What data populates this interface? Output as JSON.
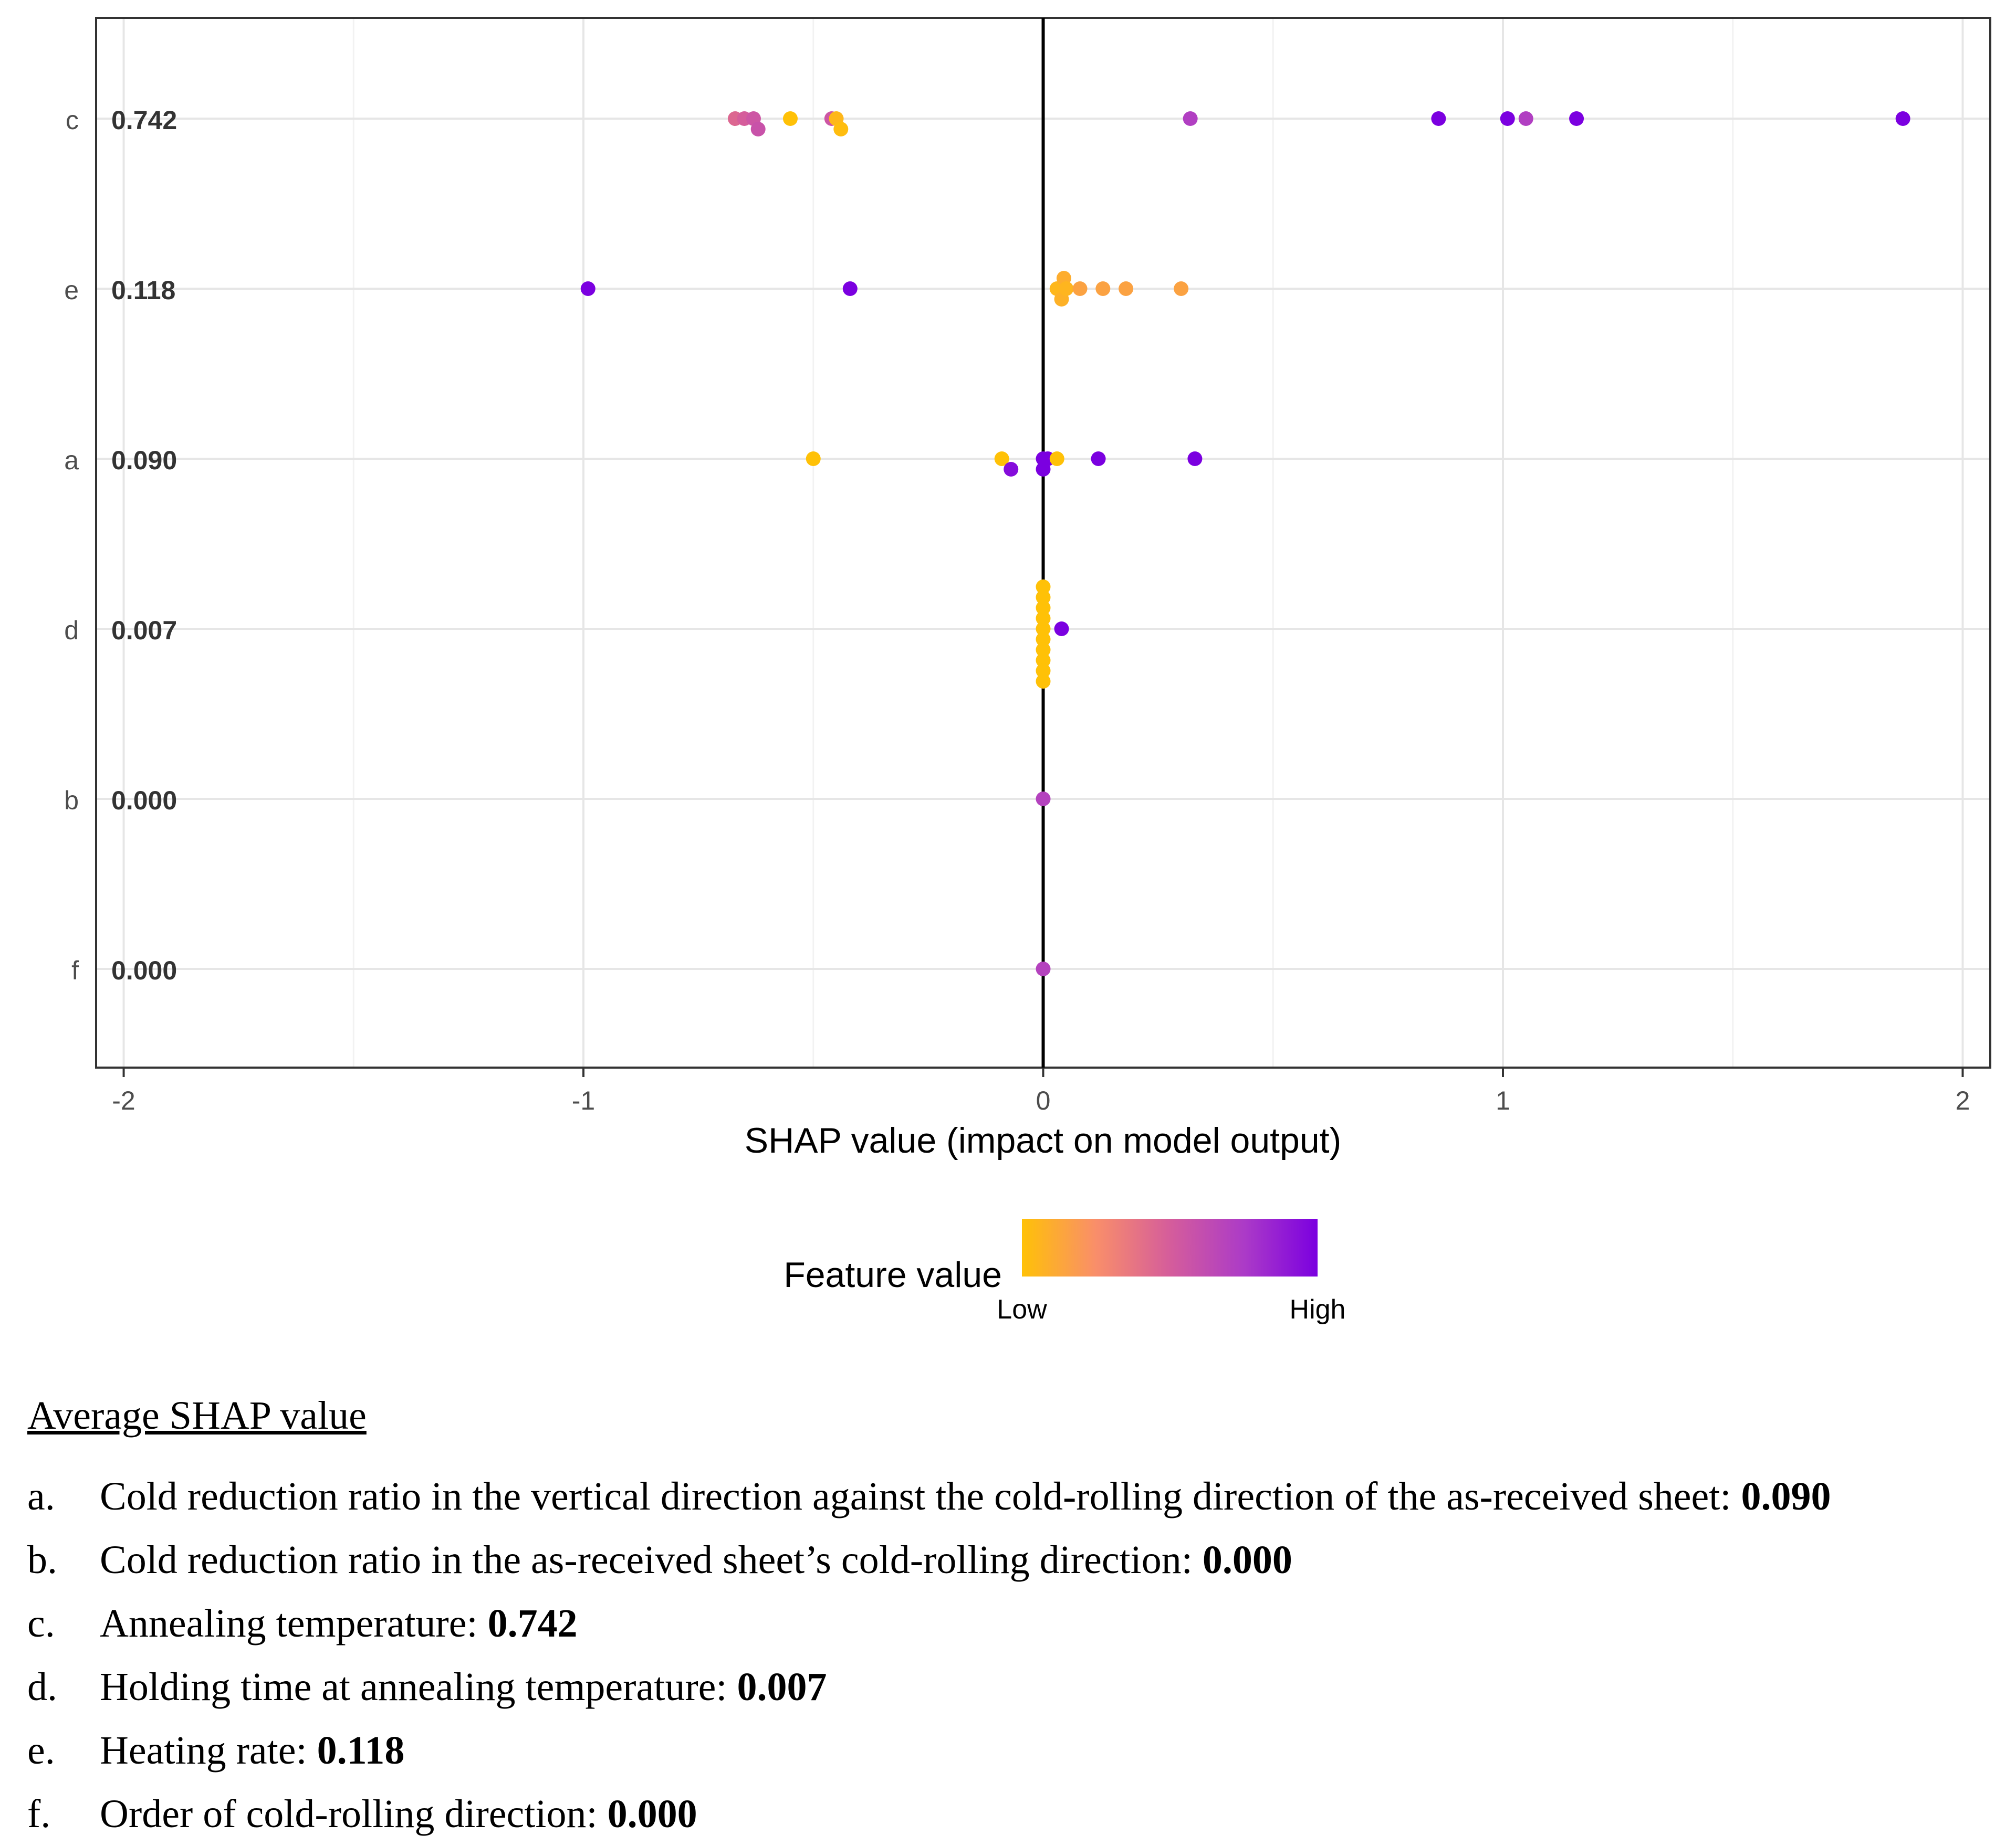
{
  "chart_data": {
    "type": "scatter",
    "xlabel": "SHAP value (impact on model output)",
    "xlim": [
      -2.06,
      2.06
    ],
    "x_ticks": [
      "-2",
      "-1",
      "0",
      "1",
      "2"
    ],
    "x_tick_values": [
      -2,
      -1,
      0,
      1,
      2
    ],
    "grid": true,
    "zero_line": true,
    "features": [
      {
        "letter": "c",
        "mean": "0.742"
      },
      {
        "letter": "e",
        "mean": "0.118"
      },
      {
        "letter": "a",
        "mean": "0.090"
      },
      {
        "letter": "d",
        "mean": "0.007"
      },
      {
        "letter": "b",
        "mean": "0.000"
      },
      {
        "letter": "f",
        "mean": "0.000"
      }
    ],
    "points": [
      {
        "row": 0,
        "x": -0.67,
        "v": 0.45
      },
      {
        "row": 0,
        "x": -0.65,
        "v": 0.5
      },
      {
        "row": 0,
        "x": -0.63,
        "v": 0.55
      },
      {
        "row": 0,
        "x": -0.62,
        "v": 0.58
      },
      {
        "row": 0,
        "x": -0.55,
        "v": 0.0
      },
      {
        "row": 0,
        "x": -0.46,
        "v": 0.55
      },
      {
        "row": 0,
        "x": -0.45,
        "v": 0.05
      },
      {
        "row": 0,
        "x": -0.44,
        "v": 0.02
      },
      {
        "row": 0,
        "x": 0.32,
        "v": 0.72
      },
      {
        "row": 0,
        "x": 0.86,
        "v": 1.0
      },
      {
        "row": 0,
        "x": 1.01,
        "v": 1.0
      },
      {
        "row": 0,
        "x": 1.05,
        "v": 0.72
      },
      {
        "row": 0,
        "x": 1.16,
        "v": 1.0
      },
      {
        "row": 0,
        "x": 1.87,
        "v": 1.0
      },
      {
        "row": 1,
        "x": -0.99,
        "v": 1.0
      },
      {
        "row": 1,
        "x": -0.42,
        "v": 1.0
      },
      {
        "row": 1,
        "x": 0.03,
        "v": 0.05
      },
      {
        "row": 1,
        "x": 0.04,
        "v": 0.08
      },
      {
        "row": 1,
        "x": 0.045,
        "v": 0.1
      },
      {
        "row": 1,
        "x": 0.05,
        "v": 0.06
      },
      {
        "row": 1,
        "x": 0.08,
        "v": 0.15
      },
      {
        "row": 1,
        "x": 0.13,
        "v": 0.15
      },
      {
        "row": 1,
        "x": 0.18,
        "v": 0.15
      },
      {
        "row": 1,
        "x": 0.3,
        "v": 0.15
      },
      {
        "row": 2,
        "x": -0.5,
        "v": 0.0
      },
      {
        "row": 2,
        "x": -0.09,
        "v": 0.0
      },
      {
        "row": 2,
        "x": -0.07,
        "v": 0.95
      },
      {
        "row": 2,
        "x": 0.0,
        "v": 1.0
      },
      {
        "row": 2,
        "x": 0.0,
        "v": 1.0
      },
      {
        "row": 2,
        "x": 0.01,
        "v": 1.0
      },
      {
        "row": 2,
        "x": 0.03,
        "v": 0.0
      },
      {
        "row": 2,
        "x": 0.12,
        "v": 1.0
      },
      {
        "row": 2,
        "x": 0.33,
        "v": 1.0
      },
      {
        "row": 3,
        "x": 0.0,
        "v": 0.0
      },
      {
        "row": 3,
        "x": 0.0,
        "v": 0.0
      },
      {
        "row": 3,
        "x": 0.0,
        "v": 0.0
      },
      {
        "row": 3,
        "x": 0.0,
        "v": 0.0
      },
      {
        "row": 3,
        "x": 0.0,
        "v": 0.0
      },
      {
        "row": 3,
        "x": 0.0,
        "v": 0.0
      },
      {
        "row": 3,
        "x": 0.0,
        "v": 0.0
      },
      {
        "row": 3,
        "x": 0.0,
        "v": 0.0
      },
      {
        "row": 3,
        "x": 0.0,
        "v": 0.0
      },
      {
        "row": 3,
        "x": 0.0,
        "v": 0.0
      },
      {
        "row": 3,
        "x": 0.04,
        "v": 1.0
      },
      {
        "row": 4,
        "x": 0.0,
        "v": 0.7
      },
      {
        "row": 5,
        "x": 0.0,
        "v": 0.7
      }
    ],
    "legend": {
      "title": "Feature value",
      "low": "Low",
      "high": "High",
      "gradient": [
        "#FFC107",
        "#F98E6A",
        "#D55D9B",
        "#AC3BC7",
        "#7B00E0"
      ]
    }
  },
  "notes": {
    "title": "Average SHAP value",
    "items": [
      {
        "letter": "a.",
        "text": "Cold reduction ratio in the vertical direction against the cold-rolling direction of the as-received sheet: ",
        "value": "0.090"
      },
      {
        "letter": "b.",
        "text": "Cold reduction ratio in the as-received sheet’s cold-rolling direction: ",
        "value": "0.000"
      },
      {
        "letter": "c.",
        "text": "Annealing temperature: ",
        "value": "0.742"
      },
      {
        "letter": "d.",
        "text": "Holding time at annealing temperature: ",
        "value": "0.007"
      },
      {
        "letter": "e.",
        "text": "Heating rate: ",
        "value": "0.118"
      },
      {
        "letter": "f.",
        "text": "Order of cold-rolling direction: ",
        "value": "0.000"
      }
    ]
  }
}
